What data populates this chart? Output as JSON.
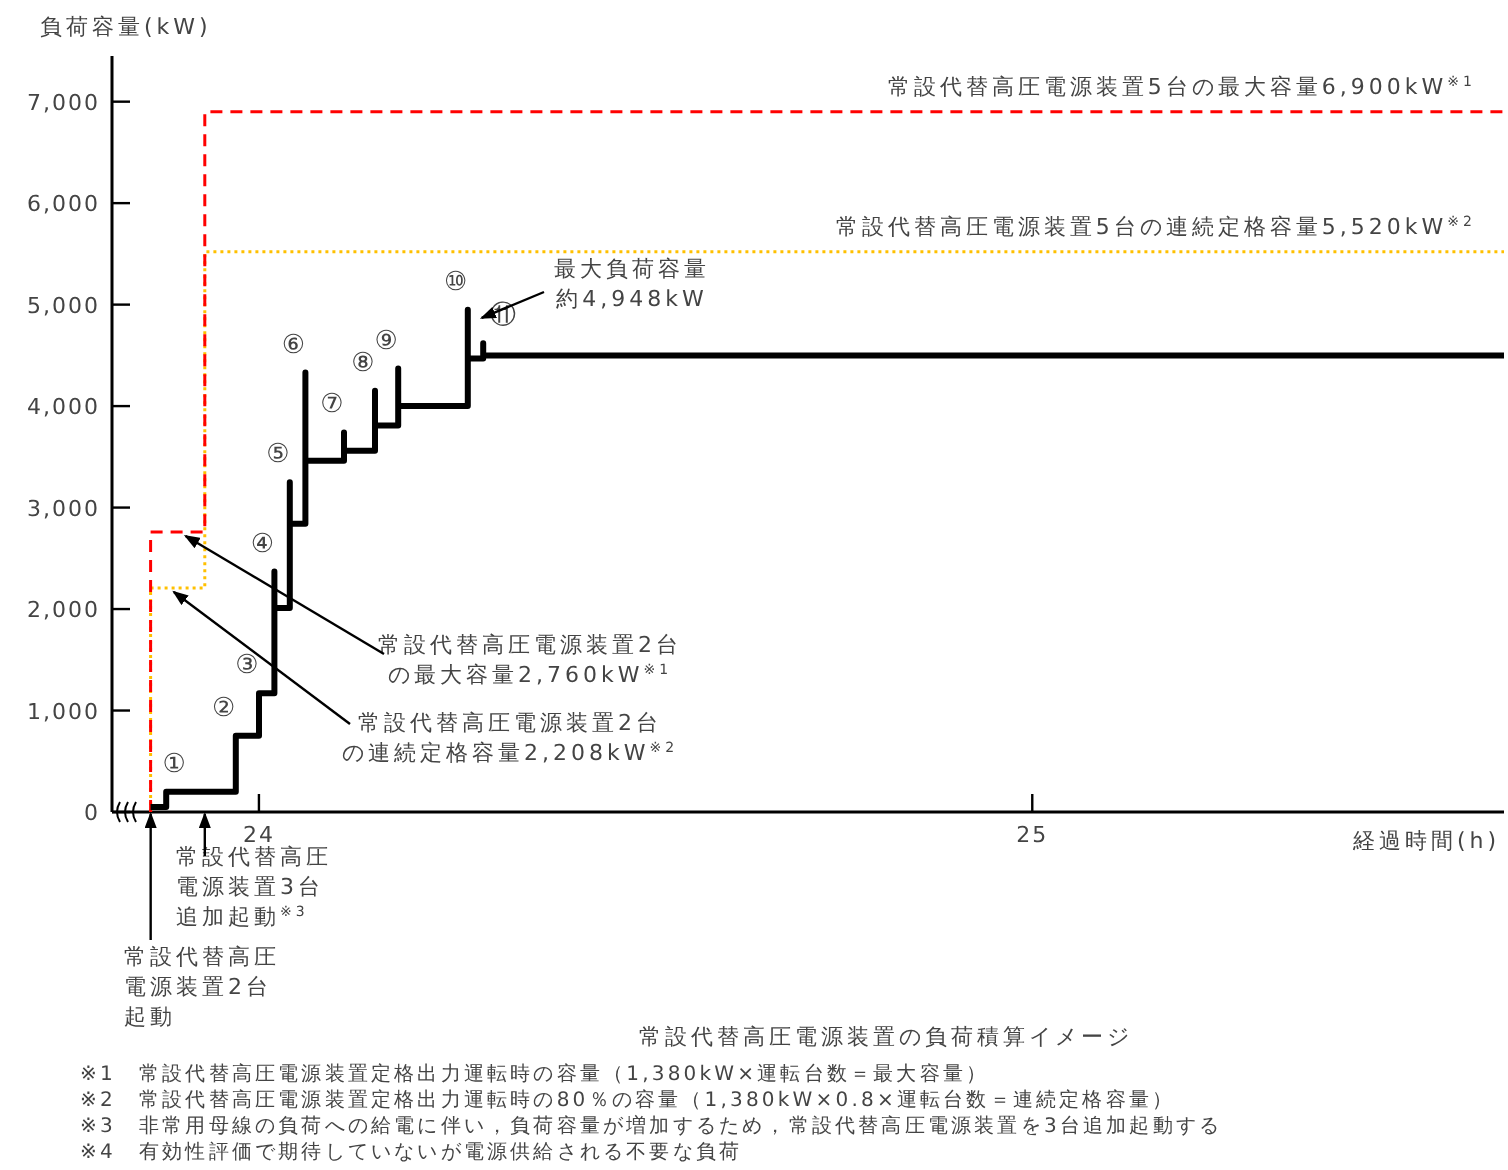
{
  "chart_data": {
    "type": "line",
    "title": "常設代替高圧電源装置の負荷積算イメージ",
    "xlabel": "経過時間(h)",
    "ylabel": "負荷容量(kW)",
    "xlim": [
      23.81,
      25.61
    ],
    "xticks": [
      24,
      25
    ],
    "ylim": [
      0,
      7450
    ],
    "yticks": [
      0,
      {
        "value": 1000,
        "label": "1,000"
      },
      {
        "value": 2000,
        "label": "2,000"
      },
      {
        "value": 3000,
        "label": "3,000"
      },
      {
        "value": 4000,
        "label": "4,000"
      },
      {
        "value": 5000,
        "label": "5,000"
      },
      {
        "value": 6000,
        "label": "6,000"
      },
      {
        "value": 7000,
        "label": "7,000"
      }
    ],
    "grid": false,
    "marker": "none",
    "series": [
      {
        "type": "line",
        "color": "#000000",
        "line_style": "solid",
        "x": [
          23.86,
          23.88,
          23.88,
          23.97,
          23.97,
          24.0,
          24.0,
          24.02,
          24.02,
          24.02,
          24.04,
          24.04,
          24.04,
          24.06,
          24.06,
          24.06,
          24.11,
          24.11,
          24.11,
          24.15,
          24.15,
          24.15,
          24.18,
          24.18,
          24.18,
          24.27,
          24.27,
          24.27,
          24.29,
          24.29,
          24.29,
          25.61
        ],
        "values": [
          50,
          50,
          200,
          200,
          750,
          750,
          1170,
          1170,
          2370,
          2010,
          2010,
          3250,
          2840,
          2840,
          4330,
          3460,
          3460,
          3740,
          3560,
          3560,
          4150,
          3810,
          3810,
          4370,
          4000,
          4000,
          4948,
          4470,
          4470,
          4620,
          4500,
          4500
        ]
      },
      {
        "type": "step",
        "color": "#ff0000",
        "line_style": "dashed",
        "x": [
          23.86,
          23.86,
          23.93,
          25.61
        ],
        "values": [
          0,
          2760,
          6900,
          6900
        ]
      },
      {
        "type": "step",
        "color": "#ffc000",
        "line_style": "dotted",
        "x": [
          23.86,
          23.86,
          23.93,
          25.61
        ],
        "values": [
          0,
          2208,
          5520,
          5520
        ]
      }
    ],
    "annotations": [
      {
        "text": "①",
        "x": 23.88,
        "y": 200
      },
      {
        "text": "②",
        "x": 23.97,
        "y": 750
      },
      {
        "text": "③",
        "x": 24.0,
        "y": 1170
      },
      {
        "text": "④",
        "x": 24.02,
        "y": 2370
      },
      {
        "text": "⑤",
        "x": 24.04,
        "y": 3250
      },
      {
        "text": "⑥",
        "x": 24.06,
        "y": 4330
      },
      {
        "text": "⑦",
        "x": 24.11,
        "y": 3740
      },
      {
        "text": "⑧",
        "x": 24.15,
        "y": 4150
      },
      {
        "text": "⑨",
        "x": 24.18,
        "y": 4370
      },
      {
        "text": "⑩",
        "x": 24.27,
        "y": 4948
      },
      {
        "text": "⑪",
        "x": 24.29,
        "y": 4620
      },
      {
        "text": "最大負荷容量約4,948kW",
        "x": 24.27,
        "y": 4948
      },
      {
        "text": "常設代替高圧電源装置2台の最大容量2,760kW$^{※1}$",
        "x": 23.9,
        "y": 2760
      },
      {
        "text": "常設代替高圧電源装置2台の連続定格容量2,208kW$^{※2}$",
        "x": 23.89,
        "y": 2208
      },
      {
        "text": "常設代替高圧電源装置5台の最大容量6,900kW$^{※1}$",
        "x": 25.45,
        "y": 6900
      },
      {
        "text": "常設代替高圧電源装置5台の連続定格容量5,520kW$^{※2}$",
        "x": 25.45,
        "y": 5520
      },
      "常設代替高圧電源装置3台追加起動$^{※3}$",
      {
        "text": "常設代替高圧電源装置2台起動",
        "x": 23.86,
        "y": 0
      },
      "※1　常設代替高圧電源装置定格出力運転時の容量（1,380kW×運転台数＝最大容量）",
      "※2　常設代替高圧電源装置定格出力運転時の80％の容量（1,380kW×0.8×運転台数＝連続定格容量）",
      "※3　非常用母線の負荷への給電に伴い，負荷容量が増加するため，常設代替高圧電源装置を3台追加起動する",
      "※4　有効性評価で期待していないが電源供給される不要な負荷"
    ]
  }
}
